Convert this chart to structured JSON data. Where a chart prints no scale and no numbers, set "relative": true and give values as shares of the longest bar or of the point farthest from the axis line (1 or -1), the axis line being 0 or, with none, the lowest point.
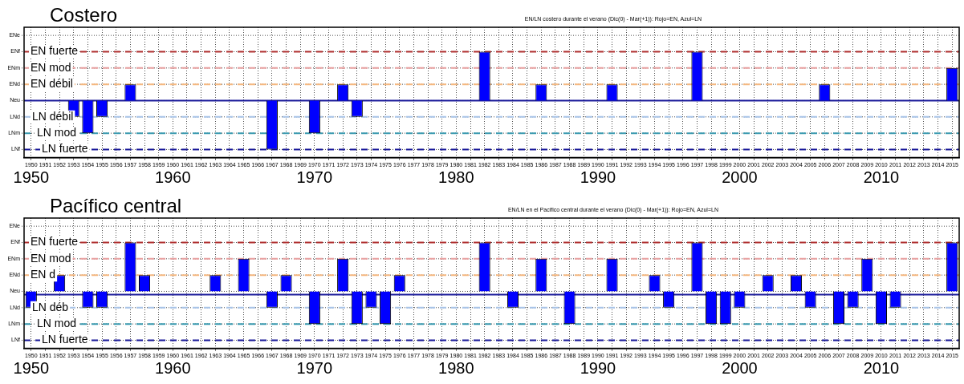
{
  "chart_data": [
    {
      "type": "bar",
      "title": "Costero",
      "subtitle": "EN/LN costero durante el verano (Dic(0) - Mar(+1)): Rojo=EN, Azul=LN",
      "categories": [
        "1950",
        "1951",
        "1952",
        "1953",
        "1954",
        "1955",
        "1956",
        "1957",
        "1958",
        "1959",
        "1960",
        "1961",
        "1962",
        "1963",
        "1964",
        "1965",
        "1966",
        "1967",
        "1968",
        "1969",
        "1970",
        "1971",
        "1972",
        "1973",
        "1974",
        "1975",
        "1976",
        "1977",
        "1978",
        "1979",
        "1980",
        "1981",
        "1982",
        "1983",
        "1984",
        "1985",
        "1986",
        "1987",
        "1988",
        "1989",
        "1990",
        "1991",
        "1992",
        "1993",
        "1994",
        "1995",
        "1996",
        "1997",
        "1998",
        "1999",
        "2000",
        "2001",
        "2002",
        "2003",
        "2004",
        "2005",
        "2006",
        "2007",
        "2008",
        "2009",
        "2010",
        "2011",
        "2012",
        "2013",
        "2014",
        "2015"
      ],
      "values": [
        0,
        0,
        0,
        -0.333,
        -0.667,
        -0.333,
        0,
        0.333,
        0,
        0,
        0,
        0,
        0,
        0,
        0,
        0,
        0,
        -1,
        0,
        0,
        -0.667,
        0,
        0.333,
        -0.333,
        0,
        0,
        0,
        0,
        0,
        0,
        0,
        0,
        1,
        0,
        0,
        0,
        0.333,
        0,
        0,
        0,
        0,
        0.333,
        0,
        0,
        0,
        0,
        0,
        1,
        0,
        0,
        0,
        0,
        0,
        0,
        0,
        0,
        0.333,
        0,
        0,
        0,
        0,
        0,
        0,
        0,
        0,
        0.667
      ],
      "color": "#0000ff",
      "relative": true,
      "grid": true,
      "legend": false,
      "ref_lines": [
        {
          "axis": "y",
          "value": 1,
          "label": "EN fuerte",
          "color": "#b03030",
          "line_style": "dashed"
        },
        {
          "axis": "y",
          "value": 0.667,
          "label": "EN mod",
          "color": "#e8a0a0",
          "line_style": "dashed"
        },
        {
          "axis": "y",
          "value": 0.333,
          "label": "EN débil",
          "color": "#f5b880",
          "line_style": "dashed"
        },
        {
          "axis": "y",
          "value": 0,
          "color": "#1a1a9a",
          "line_style": "solid"
        },
        {
          "axis": "y",
          "value": -0.333,
          "label": "LN débil",
          "color": "#a8c4e8",
          "line_style": "dashed"
        },
        {
          "axis": "y",
          "value": -0.667,
          "label": "LN mod",
          "color": "#3a9ab0",
          "line_style": "dashed"
        },
        {
          "axis": "y",
          "value": -1,
          "label": "LN fuerte",
          "color": "#1a1a9a",
          "line_style": "dashed"
        }
      ],
      "annotations": [
        "ENe",
        "ENf",
        "ENm",
        "ENd",
        "Neu",
        "LNd",
        "LNm",
        "LNf",
        "1950",
        "1960",
        "1970",
        "1980",
        "1990",
        "2000",
        "2010"
      ]
    },
    {
      "type": "bar",
      "title": "Pacífico central",
      "subtitle": "EN/LN en el Pacifico central durante el verano (Dic(0) - Mar(+1)): Rojo=EN, Azul=LN",
      "categories": [
        "1950",
        "1951",
        "1952",
        "1953",
        "1954",
        "1955",
        "1956",
        "1957",
        "1958",
        "1959",
        "1960",
        "1961",
        "1962",
        "1963",
        "1964",
        "1965",
        "1966",
        "1967",
        "1968",
        "1969",
        "1970",
        "1971",
        "1972",
        "1973",
        "1974",
        "1975",
        "1976",
        "1977",
        "1978",
        "1979",
        "1980",
        "1981",
        "1982",
        "1983",
        "1984",
        "1985",
        "1986",
        "1987",
        "1988",
        "1989",
        "1990",
        "1991",
        "1992",
        "1993",
        "1994",
        "1995",
        "1996",
        "1997",
        "1998",
        "1999",
        "2000",
        "2001",
        "2002",
        "2003",
        "2004",
        "2005",
        "2006",
        "2007",
        "2008",
        "2009",
        "2010",
        "2011",
        "2012",
        "2013",
        "2014",
        "2015"
      ],
      "values": [
        -0.333,
        0,
        0.333,
        0,
        -0.333,
        -0.333,
        0,
        1,
        0.333,
        0,
        0,
        0,
        0,
        0.333,
        0,
        0.667,
        0,
        -0.333,
        0.333,
        0,
        -0.667,
        0,
        0.667,
        -0.667,
        -0.333,
        -0.667,
        0.333,
        0,
        0,
        0,
        0,
        0,
        1,
        0,
        -0.333,
        0,
        0.667,
        0,
        -0.667,
        0,
        0,
        0.667,
        0,
        0,
        0.333,
        -0.333,
        0,
        1,
        -0.667,
        -0.667,
        -0.333,
        0,
        0.333,
        0,
        0.333,
        -0.333,
        0,
        -0.667,
        -0.333,
        0.667,
        -0.667,
        -0.333,
        0,
        0,
        0,
        1
      ],
      "color": "#0000ff",
      "relative": true,
      "grid": true,
      "legend": false,
      "ref_lines": [
        {
          "axis": "y",
          "value": 1,
          "label": "EN fuerte",
          "color": "#b03030",
          "line_style": "dashed"
        },
        {
          "axis": "y",
          "value": 0.667,
          "label": "EN mod",
          "color": "#e8a0a0",
          "line_style": "dashed"
        },
        {
          "axis": "y",
          "value": 0.333,
          "label": "EN d",
          "color": "#f5b880",
          "line_style": "dashed"
        },
        {
          "axis": "y",
          "value": -0.067,
          "color": "#1a1a9a",
          "line_style": "solid"
        },
        {
          "axis": "y",
          "value": -0.333,
          "label": "LN déb",
          "color": "#a8c4e8",
          "line_style": "dashed"
        },
        {
          "axis": "y",
          "value": -0.667,
          "label": "LN mod",
          "color": "#3a9ab0",
          "line_style": "dashed"
        },
        {
          "axis": "y",
          "value": -1,
          "label": "LN fuerte",
          "color": "#1a1a9a",
          "line_style": "dashed"
        }
      ],
      "annotations": [
        "ENe",
        "ENf",
        "ENm",
        "ENd",
        "Neu",
        "LNd",
        "LNm",
        "LNf",
        "1950",
        "1960",
        "1970",
        "1980",
        "1990",
        "2000",
        "2010"
      ]
    }
  ]
}
